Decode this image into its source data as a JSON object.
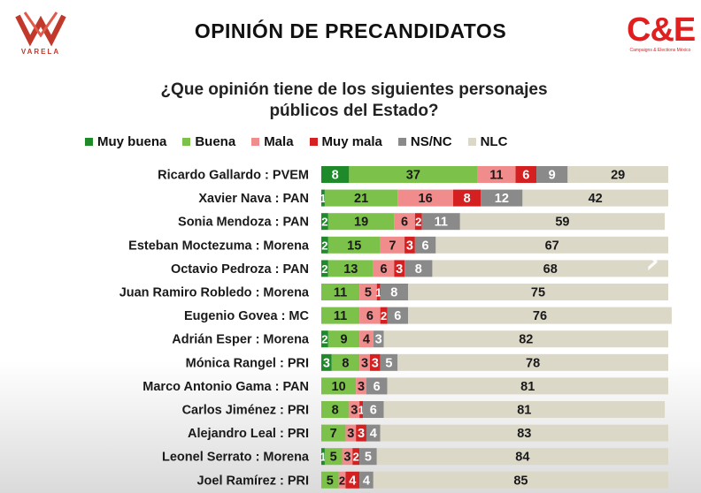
{
  "header": {
    "title": "OPINIÓN DE PRECANDIDATOS",
    "left_logo_text": "VARELA",
    "right_logo_text": "C&E",
    "right_logo_subtext": "Campaigns & Elections México"
  },
  "question": {
    "line1": "¿Que opinión tiene de los siguientes personajes",
    "line2": "públicos del Estado?"
  },
  "colors": {
    "muy_buena": "#1e8a2a",
    "buena": "#7cc24a",
    "mala": "#f08c8c",
    "muy_mala": "#d42020",
    "ns_nc": "#8a8a8a",
    "nlc": "#dcd8c8"
  },
  "chart_data": {
    "type": "bar",
    "orientation": "horizontal",
    "stacked": true,
    "xlim": [
      0,
      100
    ],
    "legend_position": "top",
    "grid": false,
    "categories": [
      "Ricardo Gallardo : PVEM",
      "Xavier Nava : PAN",
      "Sonia Mendoza : PAN",
      "Esteban Moctezuma : Morena",
      "Octavio Pedroza : PAN",
      "Juan Ramiro Robledo : Morena",
      "Eugenio Govea : MC",
      "Adrián Esper : Morena",
      "Mónica Rangel : PRI",
      "Marco Antonio Gama : PAN",
      "Carlos Jiménez : PRI",
      "Alejandro Leal : PRI",
      "Leonel Serrato : Morena",
      "Joel Ramírez : PRI"
    ],
    "series": [
      {
        "name": "Muy buena",
        "color": "#1e8a2a",
        "values": [
          8,
          1,
          2,
          2,
          2,
          0,
          0,
          2,
          3,
          0,
          0,
          0,
          1,
          0
        ],
        "labels": [
          "8",
          "1",
          "2",
          "2",
          "2",
          "",
          "",
          "2",
          "3",
          "",
          "",
          "",
          "1",
          ""
        ]
      },
      {
        "name": "Buena",
        "color": "#7cc24a",
        "values": [
          37,
          21,
          19,
          15,
          13,
          11,
          11,
          9,
          8,
          10,
          8,
          7,
          5,
          5
        ],
        "labels": [
          "37",
          "21",
          "19",
          "15",
          "13",
          "11",
          "11",
          "9",
          "8",
          "10",
          "8",
          "7",
          "5",
          "5"
        ]
      },
      {
        "name": "Mala",
        "color": "#f08c8c",
        "values": [
          11,
          16,
          6,
          7,
          6,
          5,
          6,
          4,
          3,
          3,
          3,
          3,
          3,
          2
        ],
        "labels": [
          "11",
          "16",
          "6",
          "7",
          "6",
          "5",
          "6",
          "4",
          "3",
          "3",
          "3",
          "3",
          "3",
          "2"
        ]
      },
      {
        "name": "Muy mala",
        "color": "#d42020",
        "values": [
          6,
          8,
          2,
          3,
          3,
          1,
          2,
          0,
          3,
          0,
          1,
          3,
          2,
          4
        ],
        "labels": [
          "6",
          "8",
          "2",
          "3",
          "3",
          "1",
          "2",
          "",
          "3",
          "",
          "1",
          "3",
          "2",
          "4"
        ]
      },
      {
        "name": "NS/NC",
        "color": "#8a8a8a",
        "values": [
          9,
          12,
          11,
          6,
          8,
          8,
          6,
          3,
          5,
          6,
          6,
          4,
          5,
          4
        ],
        "labels": [
          "9",
          "12",
          "11",
          "6",
          "8",
          "8",
          "6",
          "3",
          "5",
          "6",
          "6",
          "4",
          "5",
          "4"
        ]
      },
      {
        "name": "NLC",
        "color": "#dcd8c8",
        "values": [
          29,
          42,
          59,
          67,
          68,
          75,
          76,
          82,
          78,
          81,
          81,
          83,
          84,
          85
        ],
        "labels": [
          "29",
          "42",
          "59",
          "67",
          "68",
          "75",
          "76",
          "82",
          "78",
          "81",
          "81",
          "83",
          "84",
          "85"
        ]
      }
    ]
  }
}
